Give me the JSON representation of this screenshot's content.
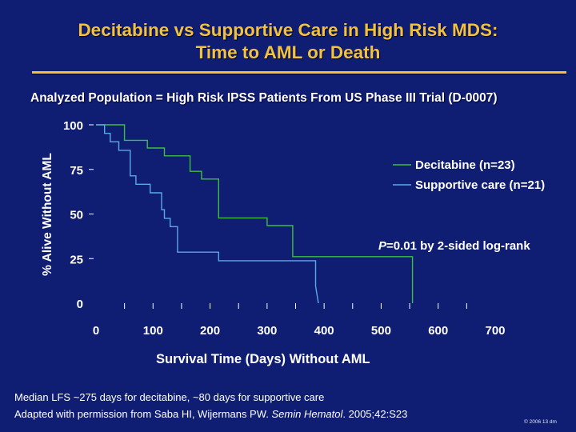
{
  "slide": {
    "title_line1": "Decitabine vs Supportive Care in High Risk MDS:",
    "title_line2": "Time to AML or Death",
    "subtitle": "Analyzed Population = High Risk IPSS Patients From US Phase III Trial (D-0007)",
    "footnote_line1": "Median LFS ~275 days for decitabine, ~80 days for supportive care",
    "footnote_line2_pre": "Adapted with permission from Saba HI, Wijermans PW. ",
    "footnote_line2_journal": "Semin Hematol",
    "footnote_line2_post": ". 2005;42:S23",
    "copyright": "© 2006 13 dm",
    "colors": {
      "background": "#0f1e73",
      "title": "#f2c23c",
      "text": "#ffffff"
    }
  },
  "chart_data": {
    "type": "line",
    "xlabel": "Survival Time (Days) Without AML",
    "ylabel": "% Alive Without AML",
    "xlim": [
      0,
      700
    ],
    "ylim": [
      0,
      100
    ],
    "x_ticks": [
      "0",
      "100",
      "200",
      "300",
      "400",
      "500",
      "600",
      "700"
    ],
    "y_ticks": [
      "0",
      "25",
      "50",
      "75",
      "100"
    ],
    "annotation_p": "P",
    "annotation_rest": "=0.01 by 2-sided log-rank",
    "series": [
      {
        "name": "Decitabine (n=23)",
        "color": "#3dbf3d",
        "x": [
          0,
          50,
          50,
          90,
          90,
          120,
          120,
          165,
          165,
          185,
          185,
          215,
          215,
          300,
          300,
          345,
          345,
          555,
          555
        ],
        "y": [
          100,
          100,
          91.3,
          91.3,
          87.0,
          87.0,
          82.6,
          82.6,
          73.9,
          73.9,
          69.6,
          69.6,
          47.8,
          47.8,
          43.5,
          43.5,
          26.1,
          26.1,
          0
        ]
      },
      {
        "name": "Supportive care (n=21)",
        "color": "#5aa8e6",
        "x": [
          0,
          15,
          15,
          25,
          25,
          40,
          40,
          60,
          60,
          70,
          70,
          95,
          95,
          115,
          115,
          120,
          120,
          130,
          130,
          143,
          143,
          215,
          215,
          385,
          385,
          390
        ],
        "y": [
          100,
          100,
          95.2,
          95.2,
          90.5,
          90.5,
          85.7,
          85.7,
          71.4,
          71.4,
          66.7,
          66.7,
          61.9,
          61.9,
          52.4,
          52.4,
          47.6,
          47.6,
          42.9,
          42.9,
          28.6,
          28.6,
          23.8,
          23.8,
          9.5,
          0
        ]
      }
    ]
  }
}
